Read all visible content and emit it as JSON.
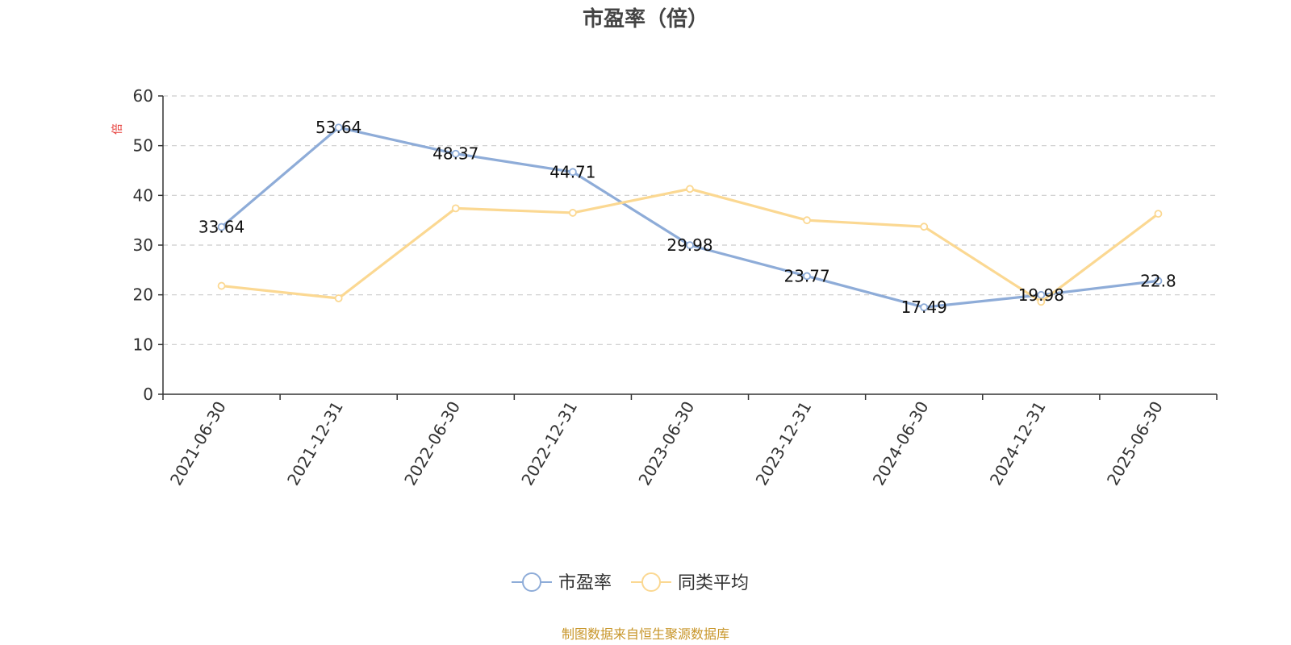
{
  "chart_data": {
    "type": "line",
    "title": "市盈率（倍）",
    "y_unit": "倍",
    "x": [
      "2021-06-30",
      "2021-12-31",
      "2022-06-30",
      "2022-12-31",
      "2023-06-30",
      "2023-12-31",
      "2024-06-30",
      "2024-12-31",
      "2025-06-30"
    ],
    "ylim": [
      0,
      60
    ],
    "yticks": [
      0,
      10,
      20,
      30,
      40,
      50,
      60
    ],
    "grid": true,
    "legend_position": "bottom",
    "series": [
      {
        "name": "市盈率",
        "color": "#8eacd8",
        "values": [
          33.64,
          53.64,
          48.37,
          44.71,
          29.98,
          23.77,
          17.49,
          19.98,
          22.8
        ],
        "labels": [
          "33.64",
          "53.64",
          "48.37",
          "44.71",
          "29.98",
          "23.77",
          "17.49",
          "19.98",
          "22.8"
        ]
      },
      {
        "name": "同类平均",
        "color": "#fbd892",
        "values": [
          21.8,
          19.3,
          37.4,
          36.5,
          41.3,
          35.0,
          33.7,
          18.6,
          36.3
        ]
      }
    ],
    "unit_color": "#e53935",
    "source_text": "制图数据来自恒生聚源数据库",
    "source_color": "#c8962a"
  }
}
